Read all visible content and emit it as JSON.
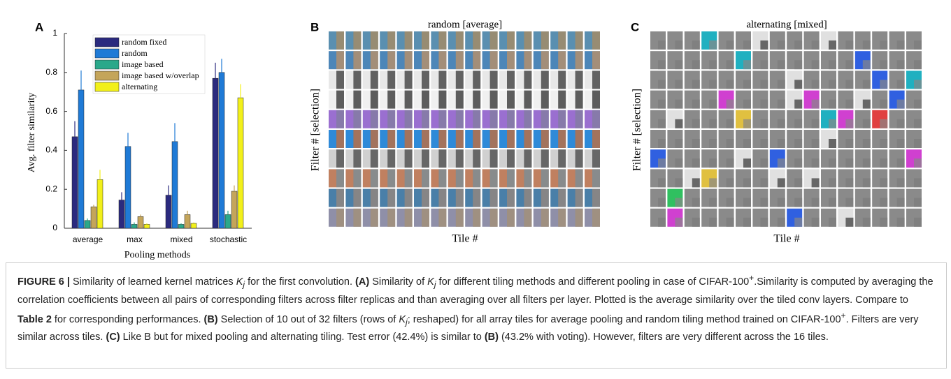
{
  "chart_data": {
    "type": "bar",
    "panel_label": "A",
    "xlabel": "Pooling methods",
    "ylabel": "Avg. filter similarity",
    "categories": [
      "average",
      "max",
      "mixed",
      "stochastic"
    ],
    "series": [
      {
        "name": "random fixed",
        "color": "#2b2a7e",
        "values": [
          0.47,
          0.145,
          0.17,
          0.77
        ],
        "errors": [
          0.08,
          0.04,
          0.05,
          0.08
        ]
      },
      {
        "name": "random",
        "color": "#1f7ad6",
        "values": [
          0.71,
          0.42,
          0.445,
          0.8
        ],
        "errors": [
          0.1,
          0.07,
          0.095,
          0.07
        ]
      },
      {
        "name": "image based",
        "color": "#2aa88a",
        "values": [
          0.04,
          0.02,
          0.02,
          0.07
        ],
        "errors": [
          0.01,
          0.01,
          0.005,
          0.02
        ]
      },
      {
        "name": "image based w/overlap",
        "color": "#c4a55a",
        "values": [
          0.11,
          0.06,
          0.07,
          0.19
        ],
        "errors": [
          0.01,
          0.01,
          0.02,
          0.03
        ]
      },
      {
        "name": "alternating",
        "color": "#f2f01a",
        "values": [
          0.25,
          0.02,
          0.025,
          0.67
        ],
        "errors": [
          0.05,
          0.005,
          0.005,
          0.07
        ]
      }
    ],
    "ylim": [
      0,
      1
    ],
    "yticks": [
      0,
      0.2,
      0.4,
      0.6,
      0.8,
      1
    ],
    "legend": "upper left"
  },
  "panel_b": {
    "label": "B",
    "title": "random [average]",
    "xlabel": "Tile #",
    "ylabel": "Filter # [selection]"
  },
  "panel_c": {
    "label": "C",
    "title": "alternating [mixed]",
    "xlabel": "Tile #",
    "ylabel": "Filter # [selection]"
  },
  "caption": [
    "FIGURE 6 |",
    " Similarity of learned kernel matrices ",
    "K",
    "j",
    " for the first convolution. ",
    "(A)",
    " Similarity of ",
    "K",
    "j",
    " for different tiling methods and different pooling in case of CIFAR-100",
    "+",
    ".Similarity is computed by averaging the correlation coefficients between all pairs of corresponding filters across filter replicas and than averaging over all filters per layer. Plotted is the average similarity over the tiled conv layers. Compare to ",
    "Table 2",
    " for corresponding performances. ",
    "(B)",
    " Selection of 10 out of 32 filters (rows of ",
    "K",
    "j",
    "; reshaped) for all array tiles for average pooling and random tiling method trained on CIFAR-100",
    "+",
    ". Filters are very similar across tiles. ",
    "(C)",
    " Like B but for mixed pooling and alternating tiling. Test error (42.4%) is similar to ",
    "(B)",
    " (43.2% with voting). However, filters are very different across the 16 tiles."
  ]
}
